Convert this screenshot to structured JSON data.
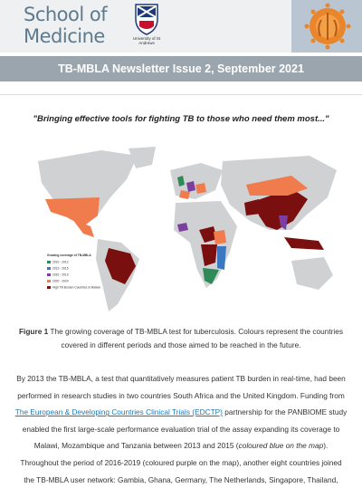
{
  "header": {
    "logo_line1": "School of",
    "logo_line2": "Medicine",
    "university": "University of St Andrews"
  },
  "banner": {
    "title": "TB-MBLA Newsletter Issue 2, September 2021"
  },
  "quote": "\"Bringing effective tools for fighting TB to those who need them most...\"",
  "map": {
    "legend_title": "Growing coverage of TB-MBLA",
    "legend_items": [
      "2010 - 2012",
      "2013 - 2015",
      "2016 - 2019",
      "2020 - 2024",
      "High TB Burden Countries & Malawi"
    ]
  },
  "figure": {
    "label": "Figure 1",
    "caption": "The growing coverage of TB-MBLA test for tuberculosis. Colours represent the countries covered in different periods and those aimed to be reached in the future."
  },
  "body": {
    "p1_a": "By 2013 the TB-MBLA, a test that quantitatively measures patient TB burden in real-time, had been performed in research studies in two countries South Africa and the United Kingdom. Funding from ",
    "p1_link": "The European & Developing Countries Clinical Trials (EDCTP)",
    "p1_b": " partnership for the PANBIOME study enabled the first large-scale performance evaluation trial of the assay expanding its coverage to Malawi, Mozambique and Tanzania between 2013 and 2015 (",
    "p1_italic": "coloured blue on the map",
    "p1_c": ").",
    "p2": "Throughout the period of 2016-2019 (coloured purple on the map), another eight countries joined the TB-MBLA user network: Gambia, Ghana, Germany, The Netherlands, Singapore, Thailand,"
  }
}
